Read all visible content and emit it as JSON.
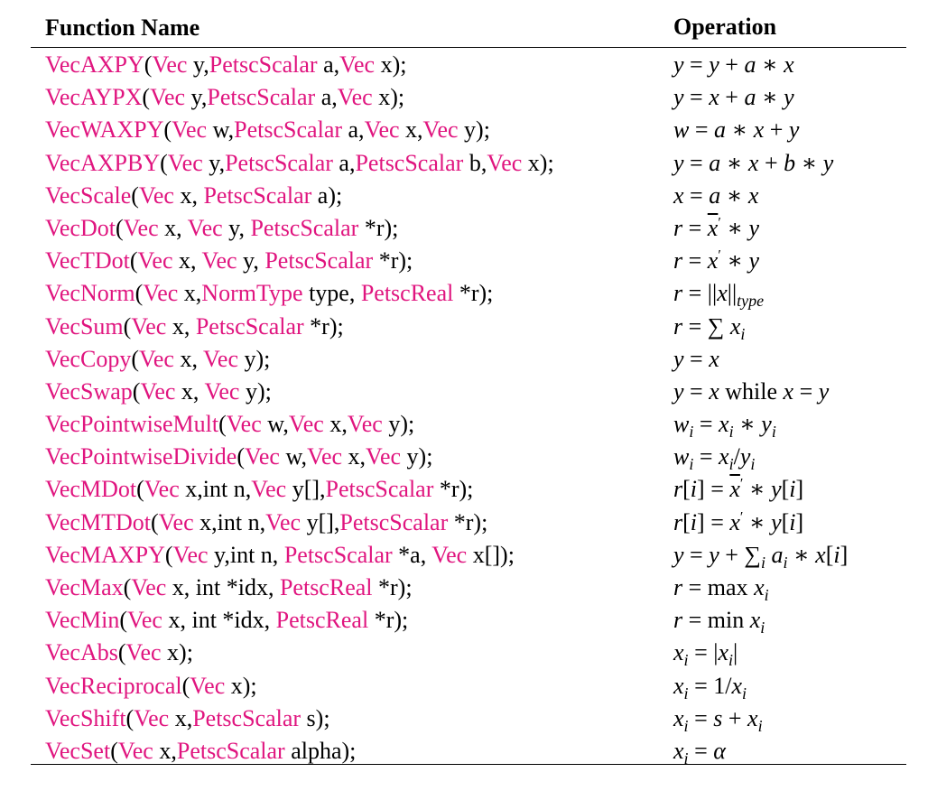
{
  "headers": {
    "function_name": "Function Name",
    "operation": "Operation"
  },
  "accent_color": "#e0157f",
  "rows": [
    {
      "signature": [
        [
          "k",
          "VecAXPY"
        ],
        [
          "t",
          "("
        ],
        [
          "k",
          "Vec"
        ],
        [
          "t",
          " y,"
        ],
        [
          "k",
          "PetscScalar"
        ],
        [
          "t",
          " a,"
        ],
        [
          "k",
          "Vec"
        ],
        [
          "t",
          " x);"
        ]
      ],
      "operation": [
        [
          "i",
          "y"
        ],
        [
          "t",
          " = "
        ],
        [
          "i",
          "y"
        ],
        [
          "t",
          " + "
        ],
        [
          "i",
          "a"
        ],
        [
          "t",
          " ∗ "
        ],
        [
          "i",
          "x"
        ]
      ]
    },
    {
      "signature": [
        [
          "k",
          "VecAYPX"
        ],
        [
          "t",
          "("
        ],
        [
          "k",
          "Vec"
        ],
        [
          "t",
          " y,"
        ],
        [
          "k",
          "PetscScalar"
        ],
        [
          "t",
          " a,"
        ],
        [
          "k",
          "Vec"
        ],
        [
          "t",
          " x);"
        ]
      ],
      "operation": [
        [
          "i",
          "y"
        ],
        [
          "t",
          " = "
        ],
        [
          "i",
          "x"
        ],
        [
          "t",
          " + "
        ],
        [
          "i",
          "a"
        ],
        [
          "t",
          " ∗ "
        ],
        [
          "i",
          "y"
        ]
      ]
    },
    {
      "signature": [
        [
          "k",
          "VecWAXPY"
        ],
        [
          "t",
          "("
        ],
        [
          "k",
          "Vec"
        ],
        [
          "t",
          " w,"
        ],
        [
          "k",
          "PetscScalar"
        ],
        [
          "t",
          " a,"
        ],
        [
          "k",
          "Vec"
        ],
        [
          "t",
          " x,"
        ],
        [
          "k",
          "Vec"
        ],
        [
          "t",
          " y);"
        ]
      ],
      "operation": [
        [
          "i",
          "w"
        ],
        [
          "t",
          " = "
        ],
        [
          "i",
          "a"
        ],
        [
          "t",
          " ∗ "
        ],
        [
          "i",
          "x"
        ],
        [
          "t",
          " + "
        ],
        [
          "i",
          "y"
        ]
      ]
    },
    {
      "signature": [
        [
          "k",
          "VecAXPBY"
        ],
        [
          "t",
          "("
        ],
        [
          "k",
          "Vec"
        ],
        [
          "t",
          " y,"
        ],
        [
          "k",
          "PetscScalar"
        ],
        [
          "t",
          " a,"
        ],
        [
          "k",
          "PetscScalar"
        ],
        [
          "t",
          " b,"
        ],
        [
          "k",
          "Vec"
        ],
        [
          "t",
          " x);"
        ]
      ],
      "operation": [
        [
          "i",
          "y"
        ],
        [
          "t",
          " = "
        ],
        [
          "i",
          "a"
        ],
        [
          "t",
          " ∗ "
        ],
        [
          "i",
          "x"
        ],
        [
          "t",
          " + "
        ],
        [
          "i",
          "b"
        ],
        [
          "t",
          " ∗ "
        ],
        [
          "i",
          "y"
        ]
      ]
    },
    {
      "signature": [
        [
          "k",
          "VecScale"
        ],
        [
          "t",
          "("
        ],
        [
          "k",
          "Vec"
        ],
        [
          "t",
          " x, "
        ],
        [
          "k",
          "PetscScalar"
        ],
        [
          "t",
          " a);"
        ]
      ],
      "operation": [
        [
          "i",
          "x"
        ],
        [
          "t",
          " = "
        ],
        [
          "i",
          "a"
        ],
        [
          "t",
          " ∗ "
        ],
        [
          "i",
          "x"
        ]
      ]
    },
    {
      "signature": [
        [
          "k",
          "VecDot"
        ],
        [
          "t",
          "("
        ],
        [
          "k",
          "Vec"
        ],
        [
          "t",
          " x, "
        ],
        [
          "k",
          "Vec"
        ],
        [
          "t",
          " y, "
        ],
        [
          "k",
          "PetscScalar"
        ],
        [
          "t",
          " *r);"
        ]
      ],
      "operation": [
        [
          "i",
          "r"
        ],
        [
          "t",
          " = "
        ],
        [
          "b",
          "x"
        ],
        [
          "p",
          "′"
        ],
        [
          "t",
          " ∗ "
        ],
        [
          "i",
          "y"
        ]
      ]
    },
    {
      "signature": [
        [
          "k",
          "VecTDot"
        ],
        [
          "t",
          "("
        ],
        [
          "k",
          "Vec"
        ],
        [
          "t",
          " x, "
        ],
        [
          "k",
          "Vec"
        ],
        [
          "t",
          " y, "
        ],
        [
          "k",
          "PetscScalar"
        ],
        [
          "t",
          " *r);"
        ]
      ],
      "operation": [
        [
          "i",
          "r"
        ],
        [
          "t",
          " = "
        ],
        [
          "i",
          "x"
        ],
        [
          "p",
          "′"
        ],
        [
          "t",
          " ∗ "
        ],
        [
          "i",
          "y"
        ]
      ]
    },
    {
      "signature": [
        [
          "k",
          "VecNorm"
        ],
        [
          "t",
          "("
        ],
        [
          "k",
          "Vec"
        ],
        [
          "t",
          " x,"
        ],
        [
          "k",
          "NormType"
        ],
        [
          "t",
          " type, "
        ],
        [
          "k",
          "PetscReal"
        ],
        [
          "t",
          " *r);"
        ]
      ],
      "operation": [
        [
          "i",
          "r"
        ],
        [
          "t",
          " = ||"
        ],
        [
          "i",
          "x"
        ],
        [
          "t",
          "||"
        ],
        [
          "s",
          "type"
        ]
      ]
    },
    {
      "signature": [
        [
          "k",
          "VecSum"
        ],
        [
          "t",
          "("
        ],
        [
          "k",
          "Vec"
        ],
        [
          "t",
          " x, "
        ],
        [
          "k",
          "PetscScalar"
        ],
        [
          "t",
          " *r);"
        ]
      ],
      "operation": [
        [
          "i",
          "r"
        ],
        [
          "t",
          " = ∑ "
        ],
        [
          "i",
          "x"
        ],
        [
          "s",
          "i"
        ]
      ]
    },
    {
      "signature": [
        [
          "k",
          "VecCopy"
        ],
        [
          "t",
          "("
        ],
        [
          "k",
          "Vec"
        ],
        [
          "t",
          " x, "
        ],
        [
          "k",
          "Vec"
        ],
        [
          "t",
          " y);"
        ]
      ],
      "operation": [
        [
          "i",
          "y"
        ],
        [
          "t",
          " = "
        ],
        [
          "i",
          "x"
        ]
      ]
    },
    {
      "signature": [
        [
          "k",
          "VecSwap"
        ],
        [
          "t",
          "("
        ],
        [
          "k",
          "Vec"
        ],
        [
          "t",
          " x, "
        ],
        [
          "k",
          "Vec"
        ],
        [
          "t",
          " y);"
        ]
      ],
      "operation": [
        [
          "i",
          "y"
        ],
        [
          "t",
          " = "
        ],
        [
          "i",
          "x"
        ],
        [
          "t",
          " while "
        ],
        [
          "i",
          "x"
        ],
        [
          "t",
          " = "
        ],
        [
          "i",
          "y"
        ]
      ]
    },
    {
      "signature": [
        [
          "k",
          "VecPointwiseMult"
        ],
        [
          "t",
          "("
        ],
        [
          "k",
          "Vec"
        ],
        [
          "t",
          " w,"
        ],
        [
          "k",
          "Vec"
        ],
        [
          "t",
          " x,"
        ],
        [
          "k",
          "Vec"
        ],
        [
          "t",
          " y);"
        ]
      ],
      "operation": [
        [
          "i",
          "w"
        ],
        [
          "s",
          "i"
        ],
        [
          "t",
          " = "
        ],
        [
          "i",
          "x"
        ],
        [
          "s",
          "i"
        ],
        [
          "t",
          " ∗ "
        ],
        [
          "i",
          "y"
        ],
        [
          "s",
          "i"
        ]
      ]
    },
    {
      "signature": [
        [
          "k",
          "VecPointwiseDivide"
        ],
        [
          "t",
          "("
        ],
        [
          "k",
          "Vec"
        ],
        [
          "t",
          " w,"
        ],
        [
          "k",
          "Vec"
        ],
        [
          "t",
          " x,"
        ],
        [
          "k",
          "Vec"
        ],
        [
          "t",
          " y);"
        ]
      ],
      "operation": [
        [
          "i",
          "w"
        ],
        [
          "s",
          "i"
        ],
        [
          "t",
          " = "
        ],
        [
          "i",
          "x"
        ],
        [
          "s",
          "i"
        ],
        [
          "t",
          "/"
        ],
        [
          "i",
          "y"
        ],
        [
          "s",
          "i"
        ]
      ]
    },
    {
      "signature": [
        [
          "k",
          "VecMDot"
        ],
        [
          "t",
          "("
        ],
        [
          "k",
          "Vec"
        ],
        [
          "t",
          " x,int n,"
        ],
        [
          "k",
          "Vec"
        ],
        [
          "t",
          " y[],"
        ],
        [
          "k",
          "PetscScalar"
        ],
        [
          "t",
          " *r);"
        ]
      ],
      "operation": [
        [
          "i",
          "r"
        ],
        [
          "t",
          "["
        ],
        [
          "i",
          "i"
        ],
        [
          "t",
          "] = "
        ],
        [
          "b",
          "x"
        ],
        [
          "p",
          "′"
        ],
        [
          "t",
          " ∗ "
        ],
        [
          "i",
          "y"
        ],
        [
          "t",
          "["
        ],
        [
          "i",
          "i"
        ],
        [
          "t",
          "]"
        ]
      ]
    },
    {
      "signature": [
        [
          "k",
          "VecMTDot"
        ],
        [
          "t",
          "("
        ],
        [
          "k",
          "Vec"
        ],
        [
          "t",
          " x,int n,"
        ],
        [
          "k",
          "Vec"
        ],
        [
          "t",
          " y[],"
        ],
        [
          "k",
          "PetscScalar"
        ],
        [
          "t",
          " *r);"
        ]
      ],
      "operation": [
        [
          "i",
          "r"
        ],
        [
          "t",
          "["
        ],
        [
          "i",
          "i"
        ],
        [
          "t",
          "] = "
        ],
        [
          "i",
          "x"
        ],
        [
          "p",
          "′"
        ],
        [
          "t",
          " ∗ "
        ],
        [
          "i",
          "y"
        ],
        [
          "t",
          "["
        ],
        [
          "i",
          "i"
        ],
        [
          "t",
          "]"
        ]
      ]
    },
    {
      "signature": [
        [
          "k",
          "VecMAXPY"
        ],
        [
          "t",
          "("
        ],
        [
          "k",
          "Vec"
        ],
        [
          "t",
          " y,int n, "
        ],
        [
          "k",
          "PetscScalar"
        ],
        [
          "t",
          " *a, "
        ],
        [
          "k",
          "Vec"
        ],
        [
          "t",
          " x[]);"
        ]
      ],
      "operation": [
        [
          "i",
          "y"
        ],
        [
          "t",
          " = "
        ],
        [
          "i",
          "y"
        ],
        [
          "t",
          " + ∑"
        ],
        [
          "s",
          "i"
        ],
        [
          "t",
          " "
        ],
        [
          "i",
          "a"
        ],
        [
          "s",
          "i"
        ],
        [
          "t",
          " ∗ "
        ],
        [
          "i",
          "x"
        ],
        [
          "t",
          "["
        ],
        [
          "i",
          "i"
        ],
        [
          "t",
          "]"
        ]
      ]
    },
    {
      "signature": [
        [
          "k",
          "VecMax"
        ],
        [
          "t",
          "("
        ],
        [
          "k",
          "Vec"
        ],
        [
          "t",
          " x, int *idx, "
        ],
        [
          "k",
          "PetscReal"
        ],
        [
          "t",
          " *r);"
        ]
      ],
      "operation": [
        [
          "i",
          "r"
        ],
        [
          "t",
          " = max "
        ],
        [
          "i",
          "x"
        ],
        [
          "s",
          "i"
        ]
      ]
    },
    {
      "signature": [
        [
          "k",
          "VecMin"
        ],
        [
          "t",
          "("
        ],
        [
          "k",
          "Vec"
        ],
        [
          "t",
          " x, int *idx, "
        ],
        [
          "k",
          "PetscReal"
        ],
        [
          "t",
          " *r);"
        ]
      ],
      "operation": [
        [
          "i",
          "r"
        ],
        [
          "t",
          " = min "
        ],
        [
          "i",
          "x"
        ],
        [
          "s",
          "i"
        ]
      ]
    },
    {
      "signature": [
        [
          "k",
          "VecAbs"
        ],
        [
          "t",
          "("
        ],
        [
          "k",
          "Vec"
        ],
        [
          "t",
          " x);"
        ]
      ],
      "operation": [
        [
          "i",
          "x"
        ],
        [
          "s",
          "i"
        ],
        [
          "t",
          " = |"
        ],
        [
          "i",
          "x"
        ],
        [
          "s",
          "i"
        ],
        [
          "t",
          "|"
        ]
      ]
    },
    {
      "signature": [
        [
          "k",
          "VecReciprocal"
        ],
        [
          "t",
          "("
        ],
        [
          "k",
          "Vec"
        ],
        [
          "t",
          " x);"
        ]
      ],
      "operation": [
        [
          "i",
          "x"
        ],
        [
          "s",
          "i"
        ],
        [
          "t",
          " = 1/"
        ],
        [
          "i",
          "x"
        ],
        [
          "s",
          "i"
        ]
      ]
    },
    {
      "signature": [
        [
          "k",
          "VecShift"
        ],
        [
          "t",
          "("
        ],
        [
          "k",
          "Vec"
        ],
        [
          "t",
          " x,"
        ],
        [
          "k",
          "PetscScalar"
        ],
        [
          "t",
          " s);"
        ]
      ],
      "operation": [
        [
          "i",
          "x"
        ],
        [
          "s",
          "i"
        ],
        [
          "t",
          " = "
        ],
        [
          "i",
          "s"
        ],
        [
          "t",
          " + "
        ],
        [
          "i",
          "x"
        ],
        [
          "s",
          "i"
        ]
      ]
    },
    {
      "signature": [
        [
          "k",
          "VecSet"
        ],
        [
          "t",
          "("
        ],
        [
          "k",
          "Vec"
        ],
        [
          "t",
          " x,"
        ],
        [
          "k",
          "PetscScalar"
        ],
        [
          "t",
          " alpha);"
        ]
      ],
      "operation": [
        [
          "i",
          "x"
        ],
        [
          "s",
          "i"
        ],
        [
          "t",
          " = "
        ],
        [
          "i",
          "α"
        ]
      ]
    }
  ]
}
